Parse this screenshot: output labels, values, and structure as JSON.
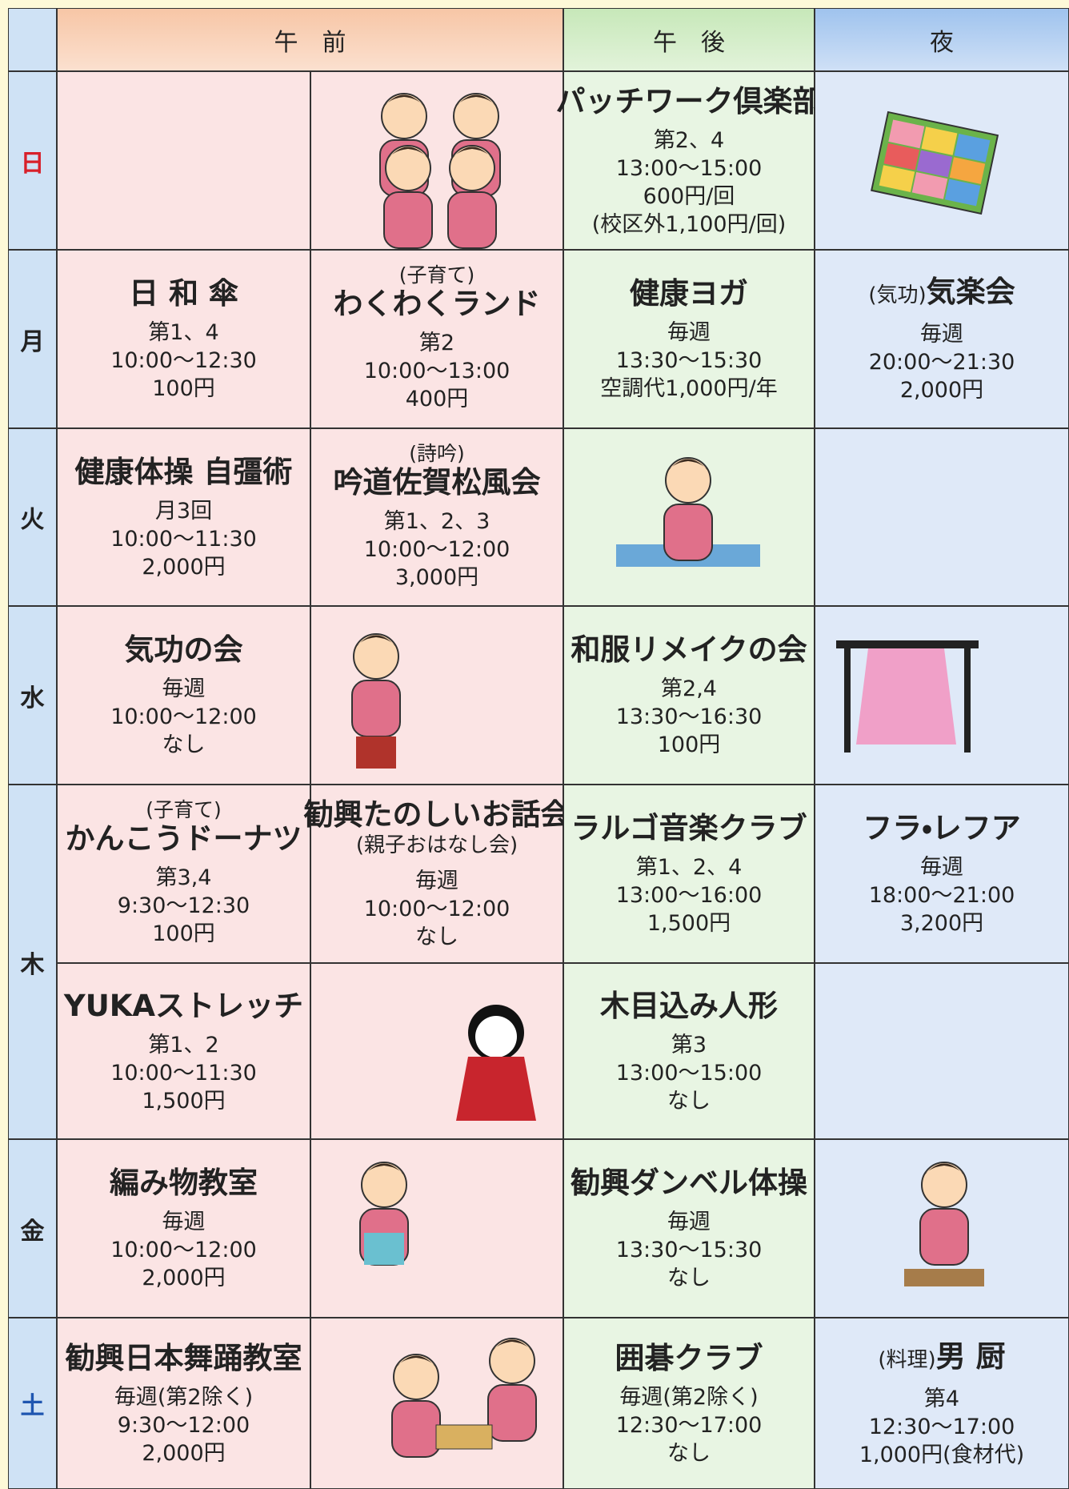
{
  "header": {
    "am": "午　前",
    "pm": "午　後",
    "night": "夜"
  },
  "days": [
    {
      "day": "日",
      "rows": [
        [
          null,
          null,
          {
            "title": "パッチワーク倶楽部",
            "lines": [
              "第2、4",
              "13:00～15:00",
              "600円/回",
              "(校区外1,100円/回)"
            ]
          },
          null
        ]
      ]
    },
    {
      "day": "月",
      "rows": [
        [
          {
            "title": "日 和 傘",
            "lines": [
              "第1、4",
              "10:00～12:30",
              "100円"
            ]
          },
          {
            "note": "(子育て)",
            "title": "わくわくランド",
            "lines": [
              "第2",
              "10:00～13:00",
              "400円"
            ]
          },
          {
            "title": "健康ヨガ",
            "lines": [
              "毎週",
              "13:30～15:30",
              "空調代1,000円/年"
            ]
          },
          {
            "prefix": "(気功)",
            "title": "気楽会",
            "lines": [
              "毎週",
              "20:00～21:30",
              "2,000円"
            ]
          }
        ]
      ]
    },
    {
      "day": "火",
      "rows": [
        [
          {
            "title": "健康体操 自彊術",
            "lines": [
              "月3回",
              "10:00～11:30",
              "2,000円"
            ]
          },
          {
            "note": "(詩吟)",
            "title": "吟道佐賀松風会",
            "lines": [
              "第1、2、3",
              "10:00～12:00",
              "3,000円"
            ]
          },
          null,
          null
        ]
      ]
    },
    {
      "day": "水",
      "rows": [
        [
          {
            "title": "気功の会",
            "lines": [
              "毎週",
              "10:00～12:00",
              "なし"
            ]
          },
          null,
          {
            "title": "和服リメイクの会",
            "lines": [
              "第2,4",
              "13:30～16:30",
              "100円"
            ]
          },
          null
        ]
      ]
    },
    {
      "day": "木",
      "rows": [
        [
          {
            "note": "(子育て)",
            "title": "かんこうドーナツ",
            "lines": [
              "第3,4",
              "9:30～12:30",
              "100円"
            ]
          },
          {
            "title": "勧興たのしいお話会",
            "subtitle": "(親子おはなし会)",
            "lines": [
              "毎週",
              "10:00～12:00",
              "なし"
            ]
          },
          {
            "title": "ラルゴ音楽クラブ",
            "lines": [
              "第1、2、4",
              "13:00～16:00",
              "1,500円"
            ]
          },
          {
            "title": "フラ・レフア",
            "lines": [
              "毎週",
              "18:00～21:00",
              "3,200円"
            ]
          }
        ],
        [
          {
            "title": "YUKAストレッチ",
            "lines": [
              "第1、2",
              "10:00～11:30",
              "1,500円"
            ]
          },
          null,
          {
            "title": "木目込み人形",
            "lines": [
              "第3",
              "13:00～15:00",
              "なし"
            ]
          },
          null
        ]
      ]
    },
    {
      "day": "金",
      "rows": [
        [
          {
            "title": "編み物教室",
            "lines": [
              "毎週",
              "10:00～12:00",
              "2,000円"
            ]
          },
          null,
          {
            "title": "勧興ダンベル体操",
            "lines": [
              "毎週",
              "13:30～15:30",
              "なし"
            ]
          },
          null
        ]
      ]
    },
    {
      "day": "土",
      "rows": [
        [
          {
            "title": "勧興日本舞踊教室",
            "lines": [
              "毎週(第2除く)",
              "9:30～12:00",
              "2,000円"
            ]
          },
          null,
          {
            "title": "囲碁クラブ",
            "lines": [
              "毎週(第2除く)",
              "12:30～17:00",
              "なし"
            ]
          },
          {
            "prefix": "(料理)",
            "title": "男 厨",
            "lines": [
              "第4",
              "12:30～17:00",
              "1,000円(食材代)"
            ]
          }
        ]
      ]
    }
  ]
}
